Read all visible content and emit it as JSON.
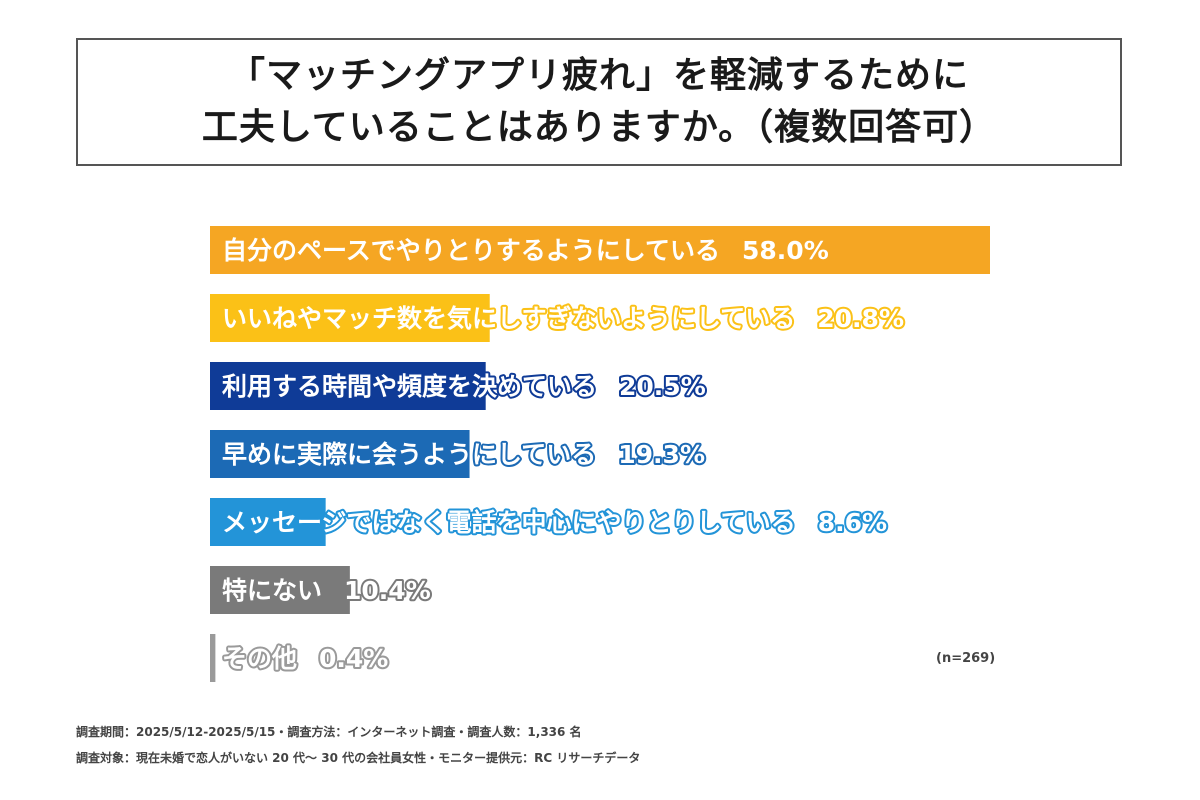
{
  "title": {
    "line1": "「マッチングアプリ疲れ」を軽減するために",
    "line2": "工夫していることはありますか。（複数回答可）"
  },
  "chart_data": {
    "type": "bar",
    "orientation": "horizontal",
    "value_unit": "%",
    "xlim": [
      0,
      58.0
    ],
    "categories": [
      "自分のペースでやりとりするようにしている",
      "いいねやマッチ数を気にしすぎないようにしている",
      "利用する時間や頻度を決めている",
      "早めに実際に会うようにしている",
      "メッセージではなく電話を中心にやりとりしている",
      "特にない",
      "その他"
    ],
    "values": [
      58.0,
      20.8,
      20.5,
      19.3,
      8.6,
      10.4,
      0.4
    ],
    "value_labels": [
      "58.0%",
      "20.8%",
      "20.5%",
      "19.3%",
      "8.6%",
      "10.4%",
      "0.4%"
    ],
    "colors": [
      "#f5a623",
      "#fbc117",
      "#0f3b97",
      "#1c6ab5",
      "#2394d8",
      "#7a7a7a",
      "#9a9a9a"
    ]
  },
  "n_label": "(n=269)",
  "footnotes": {
    "line1": "調査期間：2025/5/12-2025/5/15・調査方法：インターネット調査・調査人数：1,336 名",
    "line2": "調査対象：現在未婚で恋人がいない 20 代〜 30 代の会社員女性・モニター提供元：RC リサーチデータ"
  }
}
